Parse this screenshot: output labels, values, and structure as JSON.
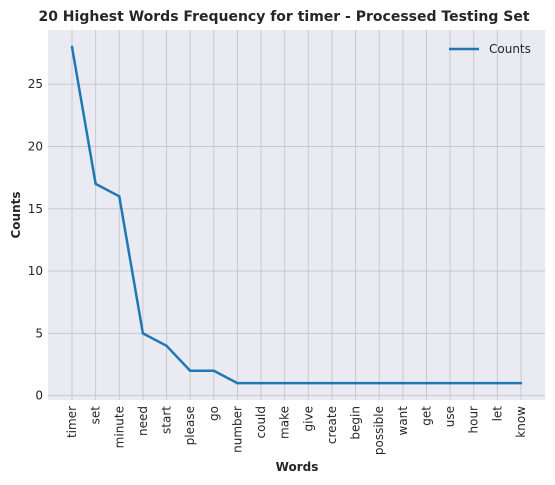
{
  "chart_data": {
    "type": "line",
    "title": "20 Highest Words Frequency for timer - Processed Testing Set",
    "xlabel": "Words",
    "ylabel": "Counts",
    "categories": [
      "timer",
      "set",
      "minute",
      "need",
      "start",
      "please",
      "go",
      "number",
      "could",
      "make",
      "give",
      "create",
      "begin",
      "possible",
      "want",
      "get",
      "use",
      "hour",
      "let",
      "know"
    ],
    "series": [
      {
        "name": "Counts",
        "values": [
          28,
          17,
          16,
          5,
          4,
          2,
          2,
          1,
          1,
          1,
          1,
          1,
          1,
          1,
          1,
          1,
          1,
          1,
          1,
          1
        ],
        "color": "#1f77b4"
      }
    ],
    "yticks": [
      "0",
      "5",
      "10",
      "15",
      "20",
      "25"
    ],
    "ylim": [
      -0.35,
      29.35
    ],
    "grid": true,
    "legend_position": "top-right",
    "background": "#eaeaf2"
  }
}
